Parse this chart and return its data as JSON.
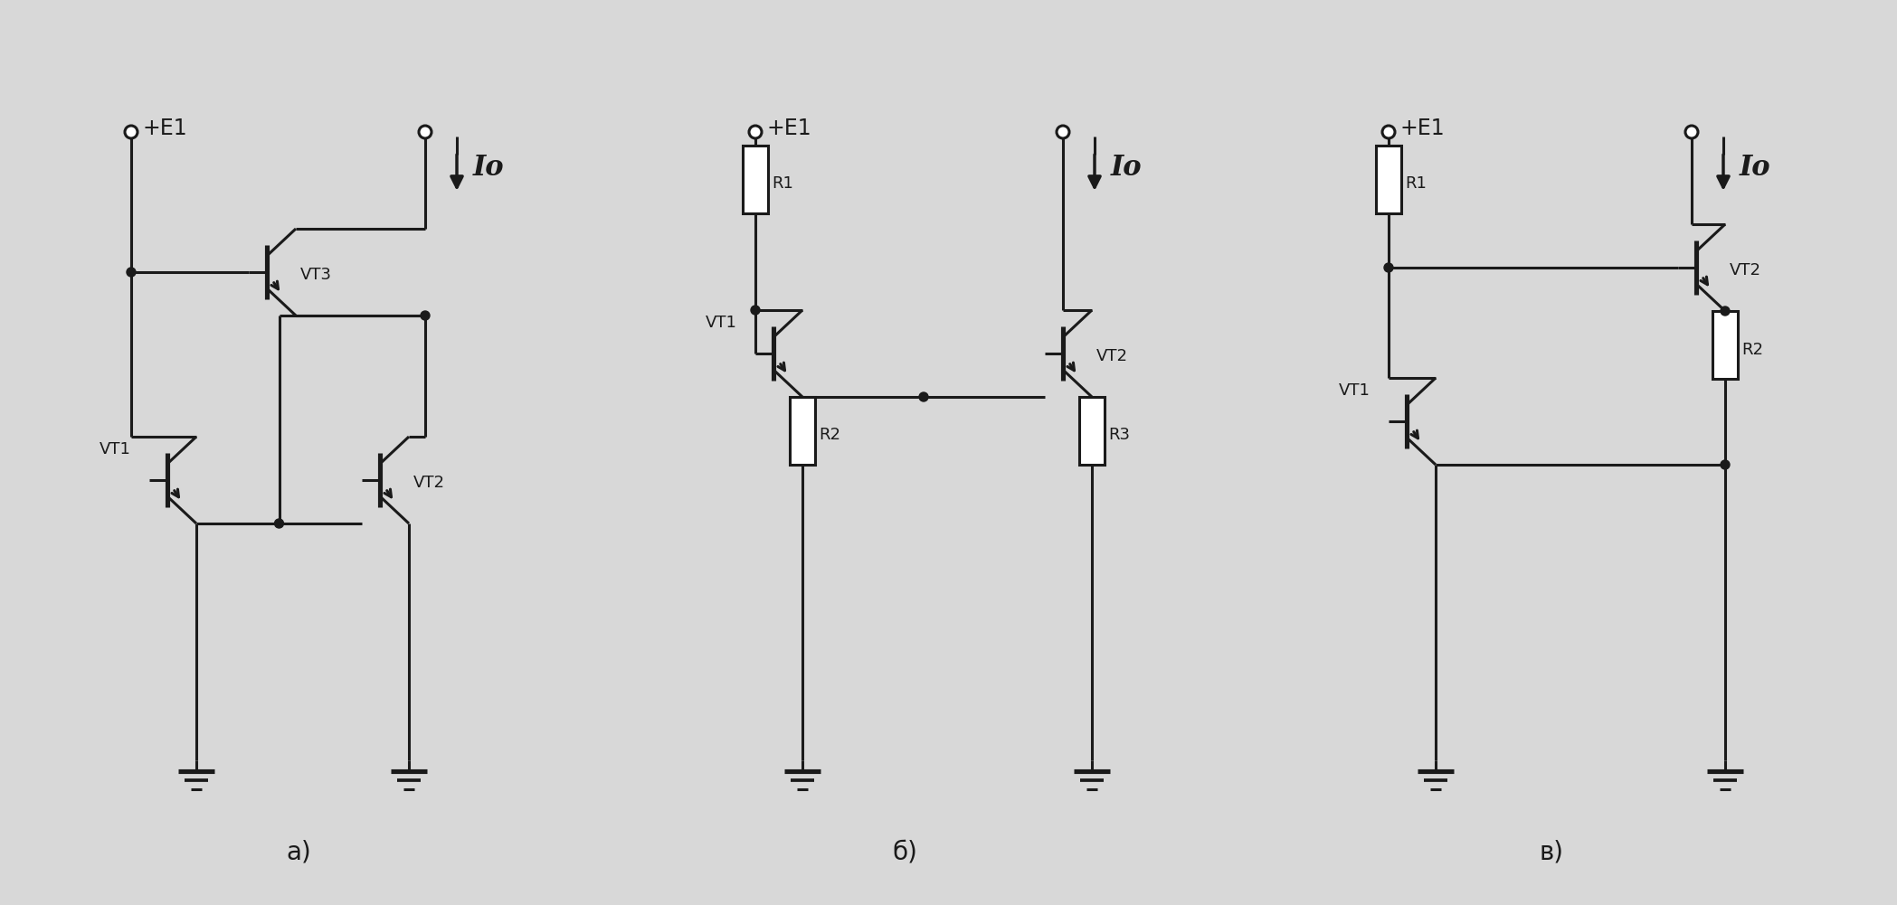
{
  "bg_color": "#d8d8d8",
  "line_color": "#1a1a1a",
  "line_width": 2.2,
  "label_a": "а)",
  "label_b": "б)",
  "label_v": "в)",
  "io_label": "Io",
  "e1_label": "+E1"
}
